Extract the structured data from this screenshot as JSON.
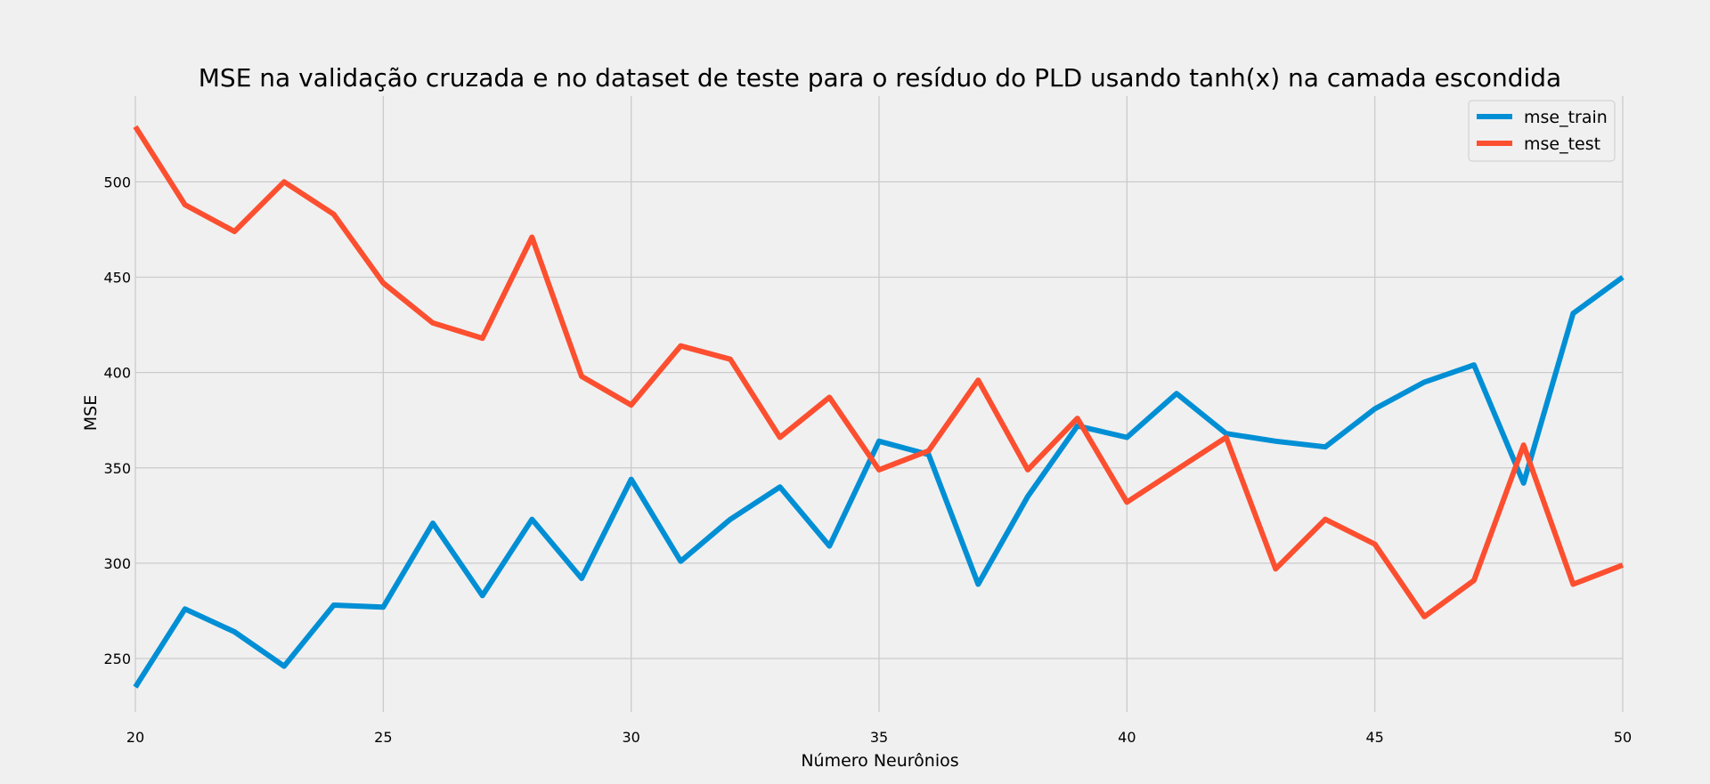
{
  "chart_data": {
    "type": "line",
    "title": "MSE na validação cruzada e no dataset de teste para o resíduo do PLD usando tanh(x) na camada escondida",
    "xlabel": "Número Neurônios",
    "ylabel": "MSE",
    "xlim": [
      20,
      50
    ],
    "ylim": [
      222,
      545
    ],
    "xticks": [
      20,
      25,
      30,
      35,
      40,
      45,
      50
    ],
    "yticks": [
      250,
      300,
      350,
      400,
      450,
      500
    ],
    "grid": true,
    "legend_position": "top-right",
    "x": [
      20,
      21,
      22,
      23,
      24,
      25,
      26,
      27,
      28,
      29,
      30,
      31,
      32,
      33,
      34,
      35,
      36,
      37,
      38,
      39,
      40,
      41,
      42,
      43,
      44,
      45,
      46,
      47,
      48,
      49,
      50
    ],
    "series": [
      {
        "name": "mse_train",
        "color": "#008fd5",
        "values": [
          235,
          276,
          264,
          246,
          278,
          277,
          321,
          283,
          323,
          292,
          344,
          301,
          323,
          340,
          309,
          364,
          357,
          289,
          335,
          372,
          366,
          389,
          368,
          364,
          361,
          381,
          395,
          404,
          342,
          431,
          450
        ]
      },
      {
        "name": "mse_test",
        "color": "#fc4f30",
        "values": [
          529,
          488,
          474,
          500,
          483,
          447,
          426,
          418,
          471,
          398,
          383,
          414,
          407,
          366,
          387,
          349,
          359,
          396,
          349,
          376,
          332,
          349,
          366,
          297,
          323,
          310,
          272,
          291,
          362,
          289,
          299
        ]
      }
    ]
  }
}
